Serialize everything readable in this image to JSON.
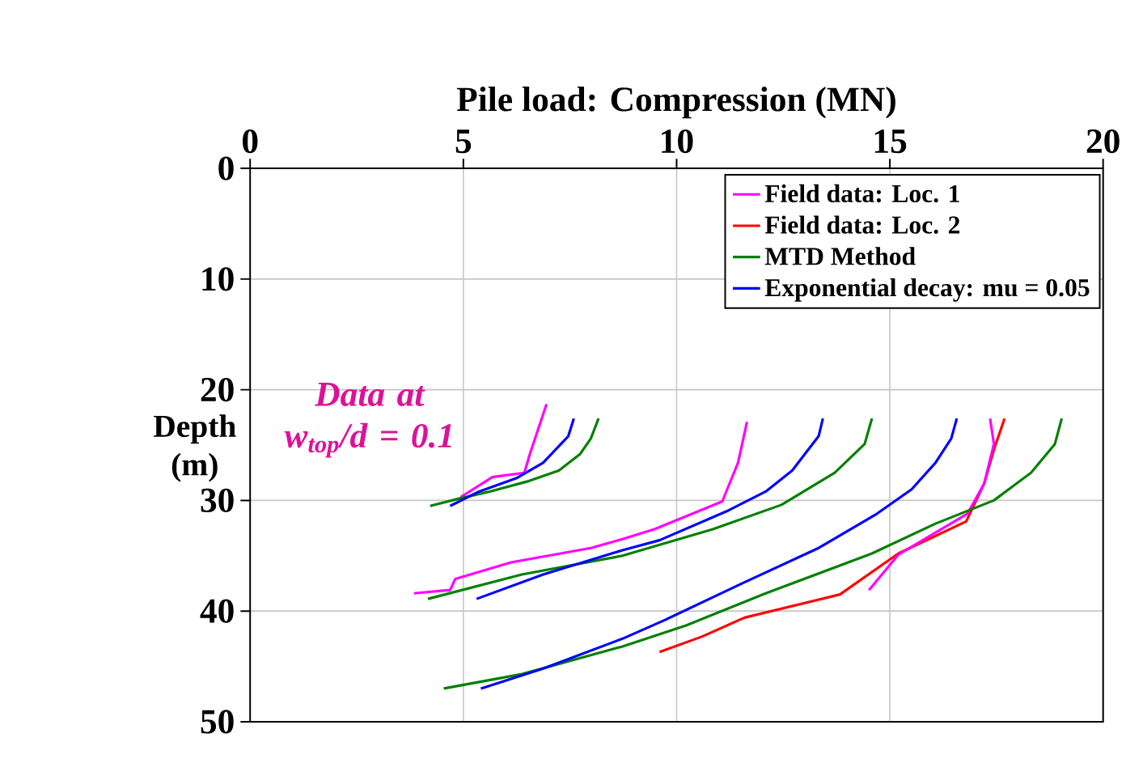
{
  "chart_data": {
    "type": "line",
    "xlabel": "Pile load: Compression (MN)",
    "ylabel": "Depth (m)",
    "xlim": [
      0,
      20
    ],
    "xticks": [
      0,
      5,
      10,
      15,
      20
    ],
    "ylim": [
      50,
      0
    ],
    "yticks": [
      0,
      10,
      20,
      30,
      40,
      50
    ],
    "grid": true,
    "legend": "top right",
    "line_style": "solid",
    "marker": "none",
    "annotations": [
      "Data at w$_{top}$/d = 0.1"
    ],
    "series": [
      {
        "name": "Field data: Loc. 1",
        "color": "#ff00ff",
        "x": [
          6.95,
          6.56,
          6.43,
          5.68,
          4.94
        ],
        "values": [
          21.3,
          25.8,
          27.5,
          27.9,
          29.7
        ]
      },
      {
        "name": "Field data: Loc. 2",
        "color": "#ff0000",
        "x": [
          17.69,
          17.44,
          17.21,
          16.79,
          15.2,
          13.83,
          11.59,
          10.6,
          9.6
        ],
        "values": [
          22.6,
          25.4,
          28.5,
          31.9,
          34.8,
          38.5,
          40.6,
          42.3,
          43.7
        ]
      },
      {
        "name": "MTD Method",
        "color": "#008000",
        "x": [
          8.17,
          7.99,
          7.74,
          7.24,
          6.49,
          5.62,
          4.94,
          4.22
        ],
        "values": [
          22.6,
          24.4,
          25.8,
          27.3,
          28.3,
          29.2,
          29.8,
          30.5
        ]
      },
      {
        "name": "Exponential decay: mu = 0.05",
        "color": "#0000ff",
        "x": [
          7.59,
          7.46,
          6.87,
          6.24,
          5.37,
          4.69
        ],
        "values": [
          22.6,
          24.2,
          26.6,
          28.0,
          29.2,
          30.5
        ]
      },
      {
        "color": "#ff00ff",
        "x": [
          11.65,
          11.44,
          11.07,
          9.48,
          8.73,
          7.99,
          6.12,
          4.81,
          4.69,
          3.84
        ],
        "values": [
          22.9,
          26.6,
          30.1,
          32.6,
          33.5,
          34.3,
          35.6,
          37.1,
          38.1,
          38.4
        ]
      },
      {
        "color": "#ff00ff",
        "x": [
          17.35,
          17.44,
          17.21,
          16.82,
          15.2,
          14.51
        ],
        "values": [
          22.6,
          24.9,
          28.5,
          31.2,
          34.9,
          38.1
        ]
      },
      {
        "color": "#008000",
        "x": [
          14.58,
          14.41,
          13.71,
          12.46,
          10.85,
          8.73,
          6.37,
          4.17
        ],
        "values": [
          22.6,
          24.9,
          27.5,
          30.4,
          32.6,
          35.0,
          36.7,
          38.9
        ]
      },
      {
        "color": "#008000",
        "x": [
          19.03,
          18.87,
          18.31,
          17.44,
          16.07,
          14.58,
          12.09,
          10.22,
          8.73,
          6.37,
          4.54
        ],
        "values": [
          22.6,
          24.9,
          27.5,
          30.0,
          32.1,
          34.8,
          38.4,
          41.3,
          43.2,
          45.7,
          47.0
        ]
      },
      {
        "color": "#0000ff",
        "x": [
          13.43,
          13.33,
          12.71,
          12.09,
          11.22,
          9.6,
          8.73,
          6.87,
          5.31
        ],
        "values": [
          22.6,
          24.2,
          27.3,
          29.2,
          30.9,
          33.6,
          34.5,
          36.7,
          38.9
        ]
      },
      {
        "color": "#0000ff",
        "x": [
          16.57,
          16.44,
          16.07,
          15.51,
          14.7,
          13.33,
          11.59,
          9.73,
          8.73,
          6.87,
          5.41
        ],
        "values": [
          22.6,
          24.4,
          26.6,
          29.0,
          31.2,
          34.3,
          37.4,
          40.8,
          42.5,
          45.2,
          47.0
        ]
      }
    ]
  }
}
